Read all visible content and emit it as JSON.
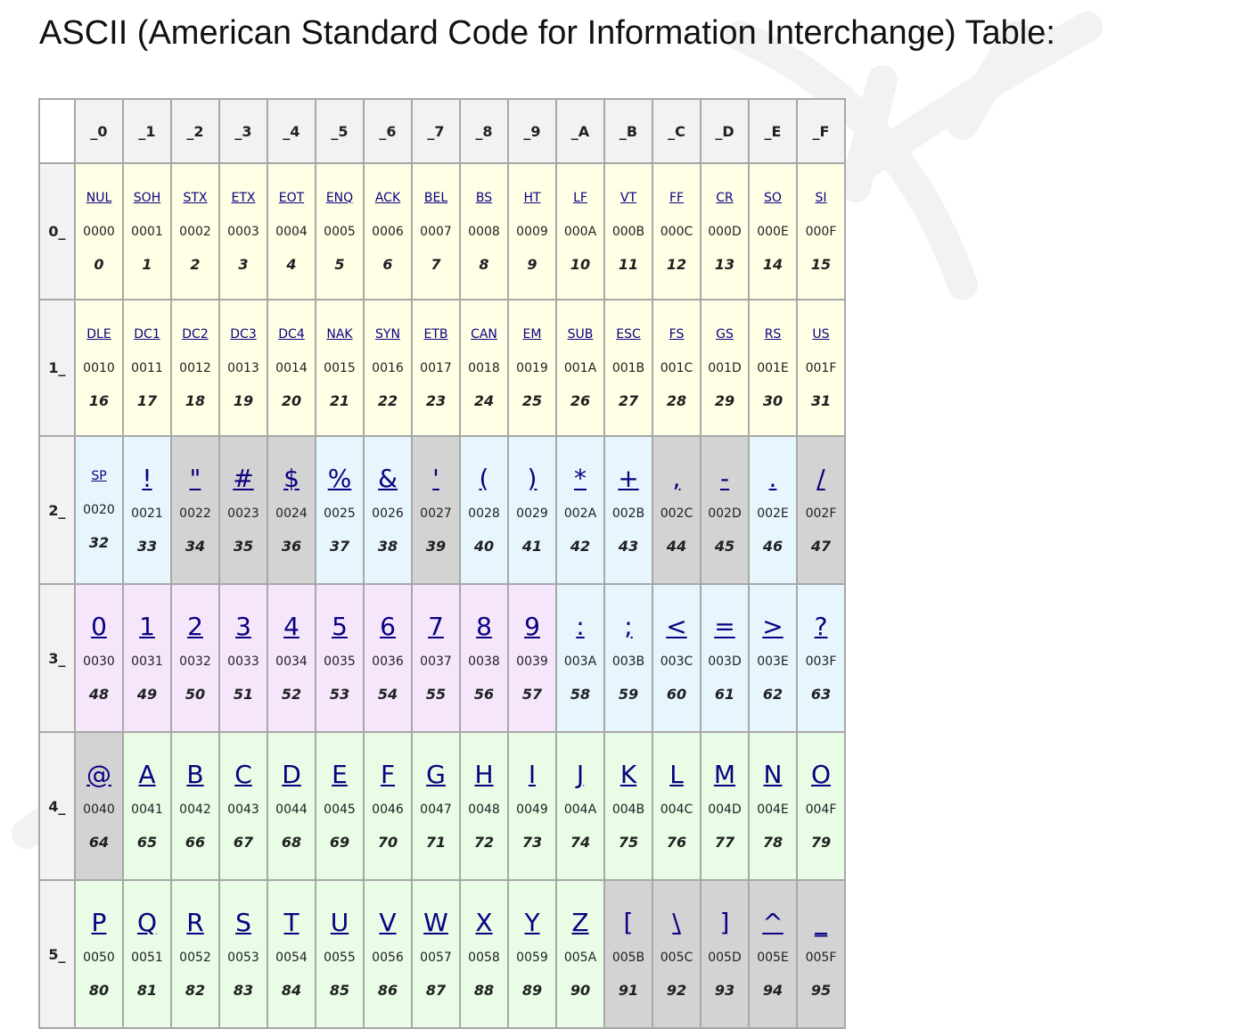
{
  "page": {
    "title": "ASCII (American Standard Code for Information Interchange) Table:"
  },
  "colors": {
    "yellow": "#ffffe6",
    "blue": "#e6f6fc",
    "gray": "#d3d3d3",
    "pink": "#f5e6fc",
    "green": "#e8fce6",
    "link": "#0b0080",
    "header_bg": "#f2f2f2"
  },
  "table": {
    "columns": [
      "_0",
      "_1",
      "_2",
      "_3",
      "_4",
      "_5",
      "_6",
      "_7",
      "_8",
      "_9",
      "_A",
      "_B",
      "_C",
      "_D",
      "_E",
      "_F"
    ],
    "rows": [
      {
        "label": "0_",
        "kind": "ctrl",
        "cells": [
          {
            "glyph": "NUL",
            "hex": "0000",
            "dec": "0",
            "color": "yellow"
          },
          {
            "glyph": "SOH",
            "hex": "0001",
            "dec": "1",
            "color": "yellow"
          },
          {
            "glyph": "STX",
            "hex": "0002",
            "dec": "2",
            "color": "yellow"
          },
          {
            "glyph": "ETX",
            "hex": "0003",
            "dec": "3",
            "color": "yellow"
          },
          {
            "glyph": "EOT",
            "hex": "0004",
            "dec": "4",
            "color": "yellow"
          },
          {
            "glyph": "ENQ",
            "hex": "0005",
            "dec": "5",
            "color": "yellow"
          },
          {
            "glyph": "ACK",
            "hex": "0006",
            "dec": "6",
            "color": "yellow"
          },
          {
            "glyph": "BEL",
            "hex": "0007",
            "dec": "7",
            "color": "yellow"
          },
          {
            "glyph": "BS",
            "hex": "0008",
            "dec": "8",
            "color": "yellow"
          },
          {
            "glyph": "HT",
            "hex": "0009",
            "dec": "9",
            "color": "yellow"
          },
          {
            "glyph": "LF",
            "hex": "000A",
            "dec": "10",
            "color": "yellow"
          },
          {
            "glyph": "VT",
            "hex": "000B",
            "dec": "11",
            "color": "yellow"
          },
          {
            "glyph": "FF",
            "hex": "000C",
            "dec": "12",
            "color": "yellow"
          },
          {
            "glyph": "CR",
            "hex": "000D",
            "dec": "13",
            "color": "yellow"
          },
          {
            "glyph": "SO",
            "hex": "000E",
            "dec": "14",
            "color": "yellow"
          },
          {
            "glyph": "SI",
            "hex": "000F",
            "dec": "15",
            "color": "yellow"
          }
        ]
      },
      {
        "label": "1_",
        "kind": "ctrl",
        "cells": [
          {
            "glyph": "DLE",
            "hex": "0010",
            "dec": "16",
            "color": "yellow"
          },
          {
            "glyph": "DC1",
            "hex": "0011",
            "dec": "17",
            "color": "yellow"
          },
          {
            "glyph": "DC2",
            "hex": "0012",
            "dec": "18",
            "color": "yellow"
          },
          {
            "glyph": "DC3",
            "hex": "0013",
            "dec": "19",
            "color": "yellow"
          },
          {
            "glyph": "DC4",
            "hex": "0014",
            "dec": "20",
            "color": "yellow"
          },
          {
            "glyph": "NAK",
            "hex": "0015",
            "dec": "21",
            "color": "yellow"
          },
          {
            "glyph": "SYN",
            "hex": "0016",
            "dec": "22",
            "color": "yellow"
          },
          {
            "glyph": "ETB",
            "hex": "0017",
            "dec": "23",
            "color": "yellow"
          },
          {
            "glyph": "CAN",
            "hex": "0018",
            "dec": "24",
            "color": "yellow"
          },
          {
            "glyph": "EM",
            "hex": "0019",
            "dec": "25",
            "color": "yellow"
          },
          {
            "glyph": "SUB",
            "hex": "001A",
            "dec": "26",
            "color": "yellow"
          },
          {
            "glyph": "ESC",
            "hex": "001B",
            "dec": "27",
            "color": "yellow"
          },
          {
            "glyph": "FS",
            "hex": "001C",
            "dec": "28",
            "color": "yellow"
          },
          {
            "glyph": "GS",
            "hex": "001D",
            "dec": "29",
            "color": "yellow"
          },
          {
            "glyph": "RS",
            "hex": "001E",
            "dec": "30",
            "color": "yellow"
          },
          {
            "glyph": "US",
            "hex": "001F",
            "dec": "31",
            "color": "yellow"
          }
        ]
      },
      {
        "label": "2_",
        "kind": "print",
        "cells": [
          {
            "glyph": "SP",
            "hex": "0020",
            "dec": "32",
            "color": "blue",
            "abbr": true
          },
          {
            "glyph": "!",
            "hex": "0021",
            "dec": "33",
            "color": "blue"
          },
          {
            "glyph": "\"",
            "hex": "0022",
            "dec": "34",
            "color": "gray"
          },
          {
            "glyph": "#",
            "hex": "0023",
            "dec": "35",
            "color": "gray"
          },
          {
            "glyph": "$",
            "hex": "0024",
            "dec": "36",
            "color": "gray"
          },
          {
            "glyph": "%",
            "hex": "0025",
            "dec": "37",
            "color": "blue"
          },
          {
            "glyph": "&",
            "hex": "0026",
            "dec": "38",
            "color": "blue"
          },
          {
            "glyph": "'",
            "hex": "0027",
            "dec": "39",
            "color": "gray"
          },
          {
            "glyph": "(",
            "hex": "0028",
            "dec": "40",
            "color": "blue"
          },
          {
            "glyph": ")",
            "hex": "0029",
            "dec": "41",
            "color": "blue"
          },
          {
            "glyph": "*",
            "hex": "002A",
            "dec": "42",
            "color": "blue"
          },
          {
            "glyph": "+",
            "hex": "002B",
            "dec": "43",
            "color": "blue"
          },
          {
            "glyph": ",",
            "hex": "002C",
            "dec": "44",
            "color": "gray"
          },
          {
            "glyph": "-",
            "hex": "002D",
            "dec": "45",
            "color": "gray"
          },
          {
            "glyph": ".",
            "hex": "002E",
            "dec": "46",
            "color": "blue"
          },
          {
            "glyph": "/",
            "hex": "002F",
            "dec": "47",
            "color": "gray"
          }
        ]
      },
      {
        "label": "3_",
        "kind": "print",
        "cells": [
          {
            "glyph": "0",
            "hex": "0030",
            "dec": "48",
            "color": "pink"
          },
          {
            "glyph": "1",
            "hex": "0031",
            "dec": "49",
            "color": "pink"
          },
          {
            "glyph": "2",
            "hex": "0032",
            "dec": "50",
            "color": "pink"
          },
          {
            "glyph": "3",
            "hex": "0033",
            "dec": "51",
            "color": "pink"
          },
          {
            "glyph": "4",
            "hex": "0034",
            "dec": "52",
            "color": "pink"
          },
          {
            "glyph": "5",
            "hex": "0035",
            "dec": "53",
            "color": "pink"
          },
          {
            "glyph": "6",
            "hex": "0036",
            "dec": "54",
            "color": "pink"
          },
          {
            "glyph": "7",
            "hex": "0037",
            "dec": "55",
            "color": "pink"
          },
          {
            "glyph": "8",
            "hex": "0038",
            "dec": "56",
            "color": "pink"
          },
          {
            "glyph": "9",
            "hex": "0039",
            "dec": "57",
            "color": "pink"
          },
          {
            "glyph": ":",
            "hex": "003A",
            "dec": "58",
            "color": "blue"
          },
          {
            "glyph": ";",
            "hex": "003B",
            "dec": "59",
            "color": "blue"
          },
          {
            "glyph": "<",
            "hex": "003C",
            "dec": "60",
            "color": "blue"
          },
          {
            "glyph": "=",
            "hex": "003D",
            "dec": "61",
            "color": "blue"
          },
          {
            "glyph": ">",
            "hex": "003E",
            "dec": "62",
            "color": "blue"
          },
          {
            "glyph": "?",
            "hex": "003F",
            "dec": "63",
            "color": "blue"
          }
        ]
      },
      {
        "label": "4_",
        "kind": "print",
        "cells": [
          {
            "glyph": "@",
            "hex": "0040",
            "dec": "64",
            "color": "gray"
          },
          {
            "glyph": "A",
            "hex": "0041",
            "dec": "65",
            "color": "green"
          },
          {
            "glyph": "B",
            "hex": "0042",
            "dec": "66",
            "color": "green"
          },
          {
            "glyph": "C",
            "hex": "0043",
            "dec": "67",
            "color": "green"
          },
          {
            "glyph": "D",
            "hex": "0044",
            "dec": "68",
            "color": "green"
          },
          {
            "glyph": "E",
            "hex": "0045",
            "dec": "69",
            "color": "green"
          },
          {
            "glyph": "F",
            "hex": "0046",
            "dec": "70",
            "color": "green"
          },
          {
            "glyph": "G",
            "hex": "0047",
            "dec": "71",
            "color": "green"
          },
          {
            "glyph": "H",
            "hex": "0048",
            "dec": "72",
            "color": "green"
          },
          {
            "glyph": "I",
            "hex": "0049",
            "dec": "73",
            "color": "green"
          },
          {
            "glyph": "J",
            "hex": "004A",
            "dec": "74",
            "color": "green"
          },
          {
            "glyph": "K",
            "hex": "004B",
            "dec": "75",
            "color": "green"
          },
          {
            "glyph": "L",
            "hex": "004C",
            "dec": "76",
            "color": "green"
          },
          {
            "glyph": "M",
            "hex": "004D",
            "dec": "77",
            "color": "green"
          },
          {
            "glyph": "N",
            "hex": "004E",
            "dec": "78",
            "color": "green"
          },
          {
            "glyph": "O",
            "hex": "004F",
            "dec": "79",
            "color": "green"
          }
        ]
      },
      {
        "label": "5_",
        "kind": "print",
        "cells": [
          {
            "glyph": "P",
            "hex": "0050",
            "dec": "80",
            "color": "green"
          },
          {
            "glyph": "Q",
            "hex": "0051",
            "dec": "81",
            "color": "green"
          },
          {
            "glyph": "R",
            "hex": "0052",
            "dec": "82",
            "color": "green"
          },
          {
            "glyph": "S",
            "hex": "0053",
            "dec": "83",
            "color": "green"
          },
          {
            "glyph": "T",
            "hex": "0054",
            "dec": "84",
            "color": "green"
          },
          {
            "glyph": "U",
            "hex": "0055",
            "dec": "85",
            "color": "green"
          },
          {
            "glyph": "V",
            "hex": "0056",
            "dec": "86",
            "color": "green"
          },
          {
            "glyph": "W",
            "hex": "0057",
            "dec": "87",
            "color": "green"
          },
          {
            "glyph": "X",
            "hex": "0058",
            "dec": "88",
            "color": "green"
          },
          {
            "glyph": "Y",
            "hex": "0059",
            "dec": "89",
            "color": "green"
          },
          {
            "glyph": "Z",
            "hex": "005A",
            "dec": "90",
            "color": "green"
          },
          {
            "glyph": "[",
            "hex": "005B",
            "dec": "91",
            "color": "gray"
          },
          {
            "glyph": "\\",
            "hex": "005C",
            "dec": "92",
            "color": "gray"
          },
          {
            "glyph": "]",
            "hex": "005D",
            "dec": "93",
            "color": "gray"
          },
          {
            "glyph": "^",
            "hex": "005E",
            "dec": "94",
            "color": "gray"
          },
          {
            "glyph": "_",
            "hex": "005F",
            "dec": "95",
            "color": "gray"
          }
        ]
      }
    ]
  }
}
